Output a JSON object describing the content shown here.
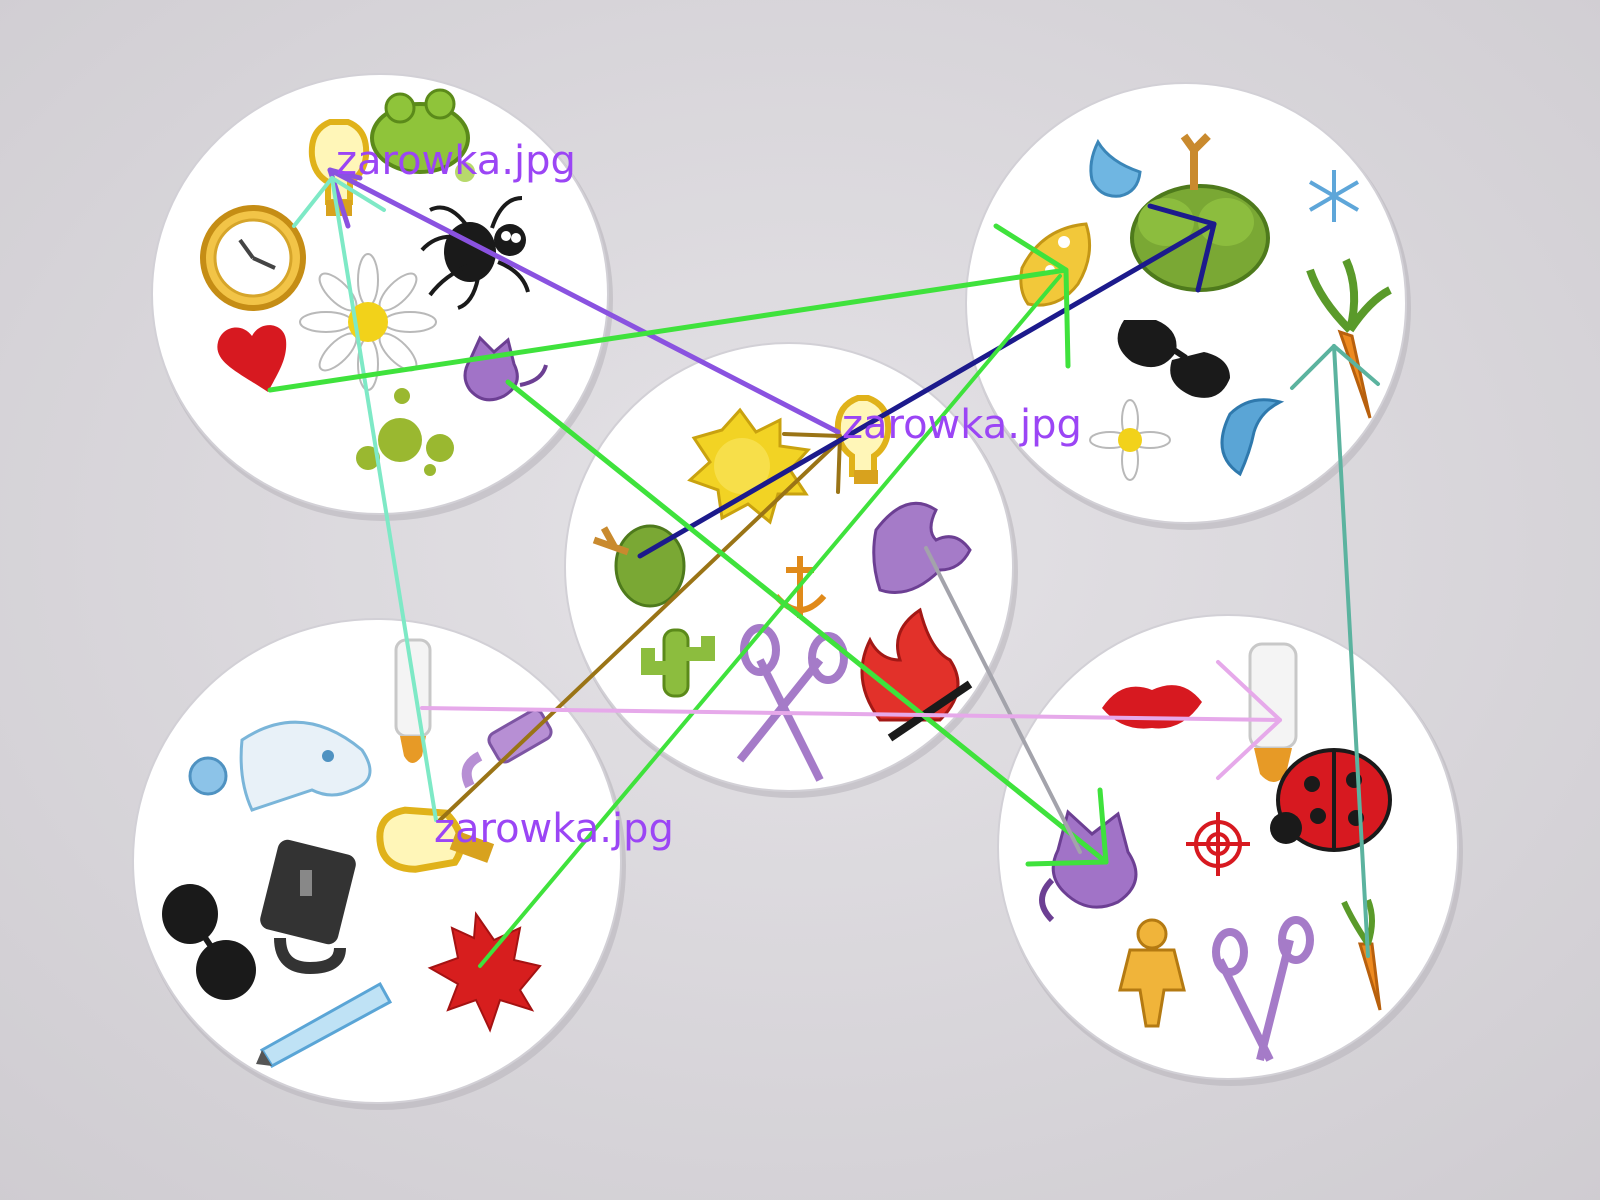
{
  "annotation_labels": [
    {
      "text": "zarowka.jpg",
      "color": "#9b45f5"
    },
    {
      "text": "zarowka.jpg",
      "color": "#9b45f5"
    },
    {
      "text": "zarowka.jpg",
      "color": "#9b45f5"
    }
  ],
  "cards": [
    {
      "id": "top-left",
      "symbols": [
        "lightbulb-icon",
        "frog-icon",
        "clock-icon",
        "spider-icon",
        "daisy-icon",
        "heart-icon",
        "cat-icon",
        "splash-icon"
      ]
    },
    {
      "id": "top-right",
      "symbols": [
        "drop-icon",
        "tree-icon",
        "snowflake-icon",
        "cheese-icon",
        "carrot-icon",
        "sunglasses-icon",
        "dolphin-icon",
        "daisy-icon"
      ]
    },
    {
      "id": "center",
      "symbols": [
        "sun-icon",
        "lightbulb-icon",
        "tree-icon",
        "dragon-icon",
        "anchor-icon",
        "cactus-icon",
        "scissors-icon",
        "fire-icon"
      ]
    },
    {
      "id": "bottom-left",
      "symbols": [
        "ghost-icon",
        "baby-bottle-icon",
        "candle-icon",
        "lightbulb-icon",
        "padlock-icon",
        "sunglasses-icon",
        "maple-leaf-icon",
        "pencil-icon"
      ]
    },
    {
      "id": "bottom-right",
      "symbols": [
        "lips-icon",
        "baby-bottle-icon",
        "ladybug-icon",
        "cat-icon",
        "target-icon",
        "snowman-icon",
        "scissors-icon",
        "carrot-icon"
      ]
    }
  ],
  "colors": {
    "bulb_label": "#9b45f5",
    "match_green": "#3fe23c",
    "match_navy": "#1c1a8c",
    "match_purple": "#8a52e0",
    "match_mint": "#7ee9c6",
    "match_brown": "#9a7416",
    "match_gray": "#a3a3ab",
    "match_pink": "#e6a9ea",
    "match_teal": "#5bb39f"
  }
}
